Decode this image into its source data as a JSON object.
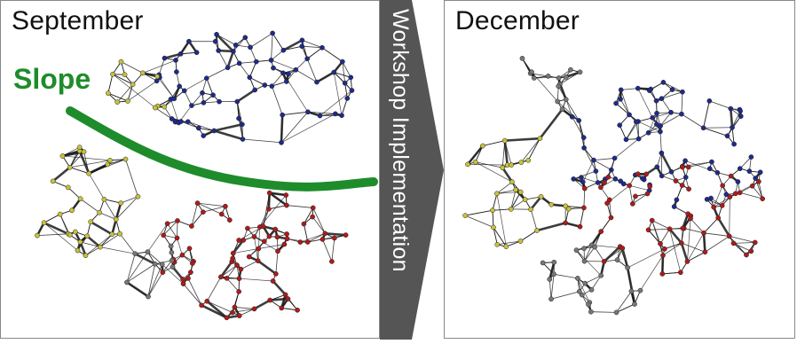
{
  "left_panel": {
    "title": "September",
    "slope_label": "Slope"
  },
  "arrow": {
    "label": "Workshop Implementation"
  },
  "right_panel": {
    "title": "December"
  },
  "colors": {
    "blue_nodes": "#1f2a8c",
    "red_nodes": "#b01a1a",
    "yellow_nodes": "#c8c23a",
    "gray_nodes": "#777777",
    "slope_line": "#1e8c2a",
    "arrow": "#555555"
  }
}
